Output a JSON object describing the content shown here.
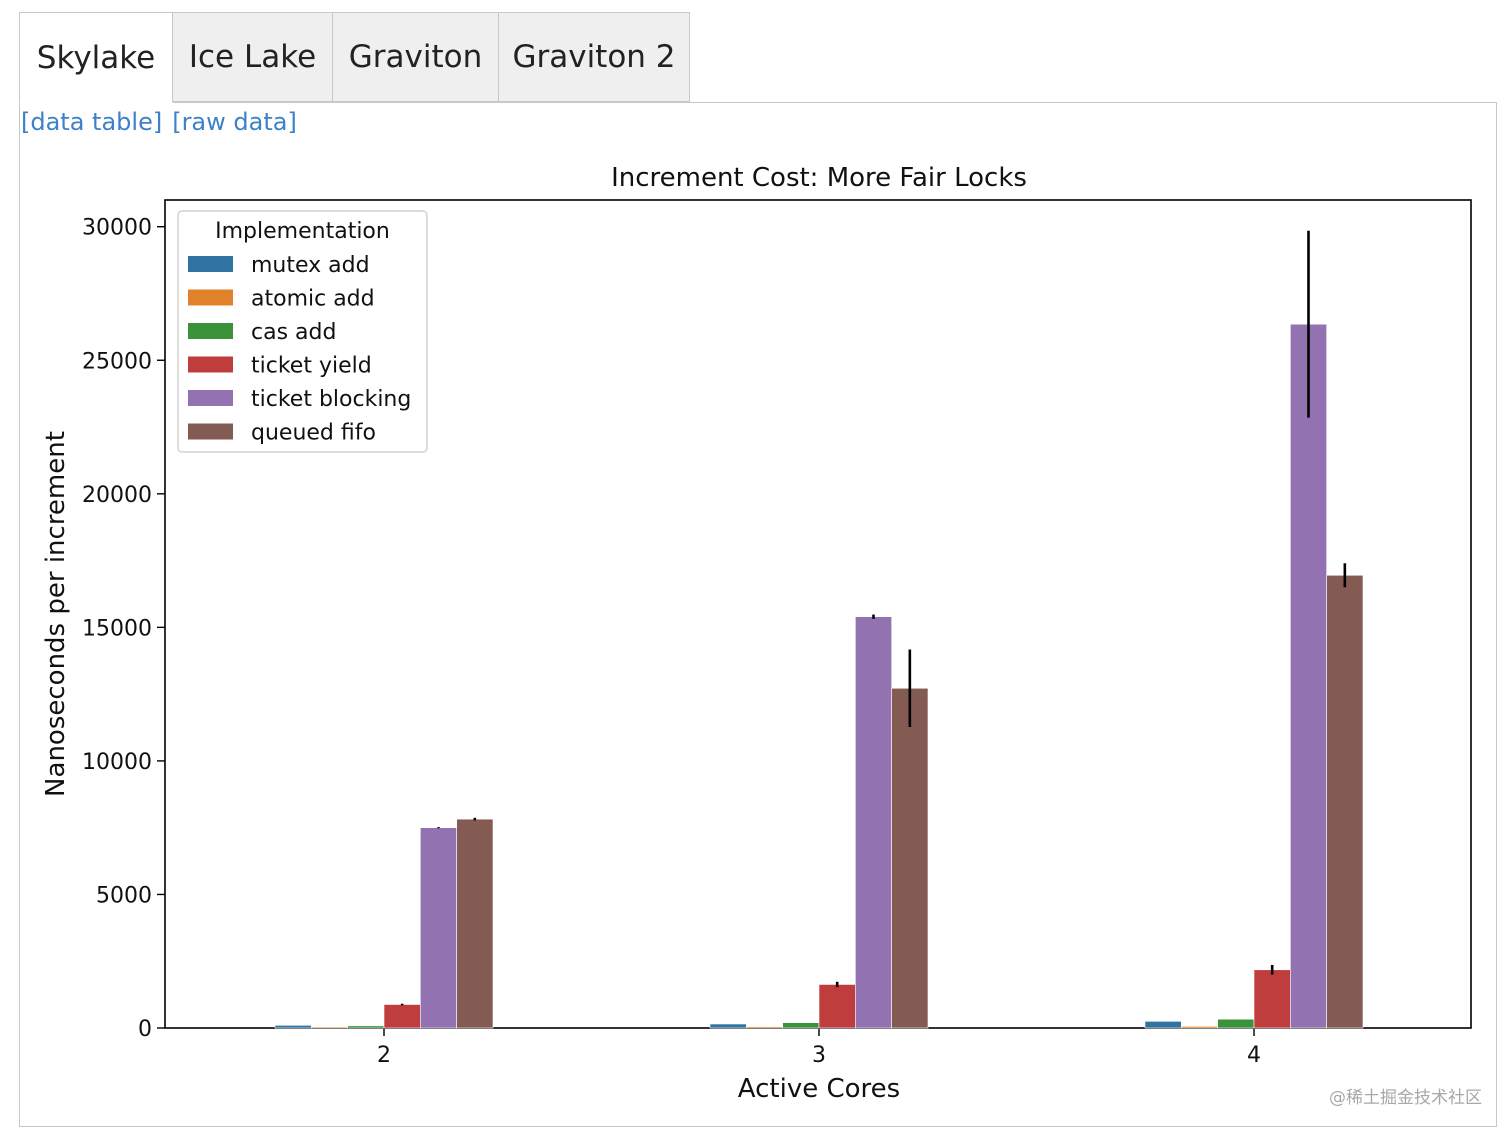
{
  "tabs": [
    {
      "label": "Skylake",
      "active": true
    },
    {
      "label": "Ice Lake",
      "active": false
    },
    {
      "label": "Graviton",
      "active": false
    },
    {
      "label": "Graviton 2",
      "active": false
    }
  ],
  "links": {
    "data_table": "[data table]",
    "raw_data": "[raw data]"
  },
  "watermark": "@稀土掘金技术社区",
  "chart_data": {
    "type": "bar",
    "title": "Increment Cost: More Fair Locks",
    "xlabel": "Active Cores",
    "ylabel": "Nanoseconds per increment",
    "categories": [
      "2",
      "3",
      "4"
    ],
    "ylim": [
      0,
      31000
    ],
    "yticks": [
      0,
      5000,
      10000,
      15000,
      20000,
      25000,
      30000
    ],
    "grid": false,
    "legend": {
      "title": "Implementation",
      "placement": "top-left"
    },
    "series": [
      {
        "name": "mutex add",
        "color": "#3274a1",
        "values": [
          100,
          150,
          250
        ],
        "errors": [
          0,
          0,
          0
        ]
      },
      {
        "name": "atomic add",
        "color": "#e1812c",
        "values": [
          40,
          50,
          60
        ],
        "errors": [
          0,
          0,
          0
        ]
      },
      {
        "name": "cas add",
        "color": "#3a923a",
        "values": [
          80,
          200,
          330
        ],
        "errors": [
          0,
          0,
          0
        ]
      },
      {
        "name": "ticket yield",
        "color": "#c03d3e",
        "values": [
          880,
          1630,
          2180
        ],
        "errors": [
          30,
          100,
          180
        ]
      },
      {
        "name": "ticket blocking",
        "color": "#9372b2",
        "values": [
          7500,
          15400,
          26350
        ],
        "errors": [
          20,
          80,
          3500
        ]
      },
      {
        "name": "queued fifo",
        "color": "#845b53",
        "values": [
          7820,
          12720,
          16950
        ],
        "errors": [
          50,
          1450,
          450
        ]
      }
    ]
  }
}
